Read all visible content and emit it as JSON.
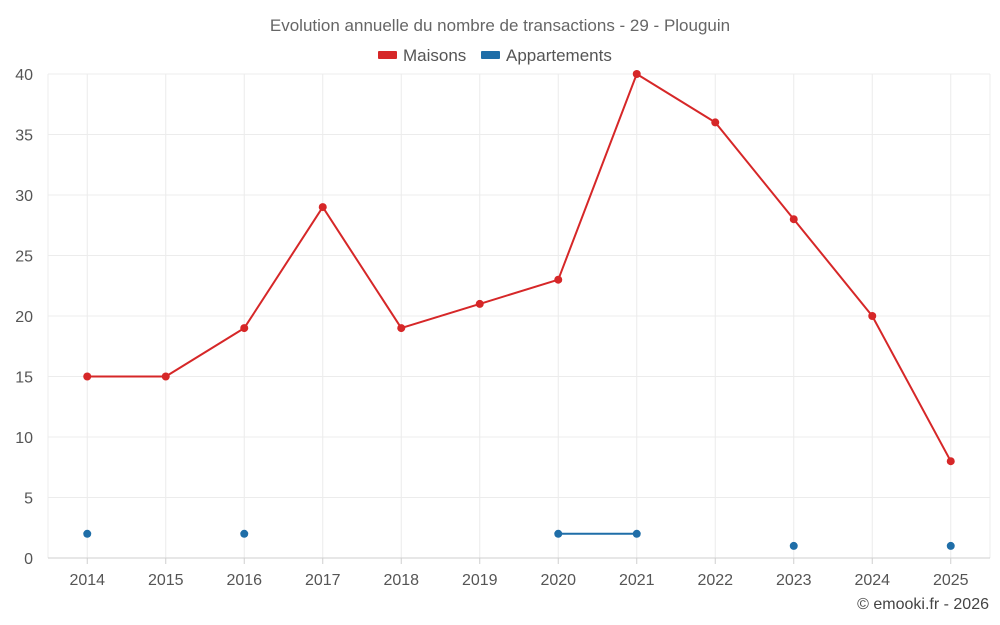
{
  "chart_data": {
    "type": "line",
    "title": "Evolution annuelle du nombre de transactions - 29 - Plouguin",
    "xlabel": "",
    "ylabel": "",
    "ylim": [
      0,
      40
    ],
    "yticks": [
      0,
      5,
      10,
      15,
      20,
      25,
      30,
      35,
      40
    ],
    "categories": [
      "2014",
      "2015",
      "2016",
      "2017",
      "2018",
      "2019",
      "2020",
      "2021",
      "2022",
      "2023",
      "2024",
      "2025"
    ],
    "grid": true,
    "legend_position": "top-center",
    "series": [
      {
        "name": "Maisons",
        "color": "#d62728",
        "values": [
          15,
          15,
          19,
          29,
          19,
          21,
          23,
          40,
          36,
          28,
          20,
          8
        ]
      },
      {
        "name": "Appartements",
        "color": "#1f6ea8",
        "values": [
          2,
          null,
          2,
          null,
          null,
          null,
          2,
          2,
          null,
          1,
          null,
          1
        ]
      }
    ],
    "credit": "© emooki.fr - 2026"
  }
}
